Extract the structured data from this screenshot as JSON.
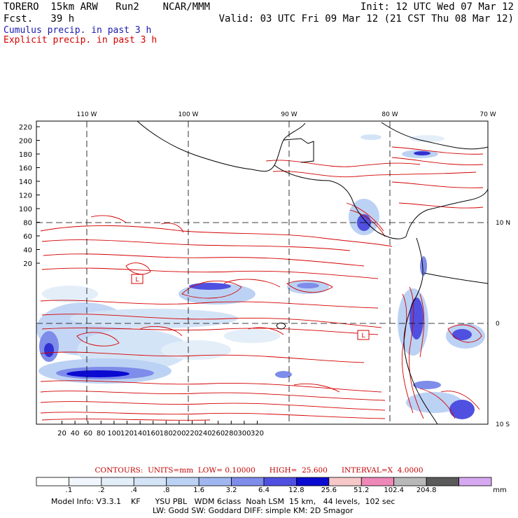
{
  "header": {
    "line1_left": "TORERO  15km ARW   Run2    NCAR/MMM",
    "line1_right": "Init: 12 UTC Wed 07 Mar 12",
    "line2_left": "Fcst.   39 h",
    "line2_right": "Valid: 03 UTC Fri 09 Mar 12 (21 CST Thu 08 Mar 12)",
    "cumulus": "Cumulus precip. in past 3 h",
    "explicit": "Explicit precip. in past 3 h",
    "cumulus_color": "#1a1ab0",
    "explicit_color": "#d40000"
  },
  "map": {
    "top_lon_labels": [
      "110 W",
      "100 W",
      "90 W",
      "80 W",
      "70 W"
    ],
    "right_lat_labels": [
      "10 N",
      "0",
      "10 S"
    ],
    "left_ticks": [
      "220",
      "200",
      "180",
      "160",
      "140",
      "120",
      "100",
      "80",
      "60",
      "40",
      "20"
    ],
    "bottom_ticks": [
      "20",
      "40",
      "60",
      "80",
      "100",
      "120",
      "140",
      "160",
      "180",
      "200",
      "220",
      "240",
      "260",
      "280",
      "300",
      "320"
    ],
    "low_markers": [
      "L",
      "L"
    ],
    "contour_color": "#d40000",
    "coast_color": "#000000"
  },
  "contours_line": "CONTOURS:  UNITS=mm  LOW= 0.10000      HIGH=  25.600      INTERVAL=X  4.0000",
  "colorbar": {
    "labels": [
      ".1",
      ".2",
      ".4",
      ".8",
      "1.6",
      "3.2",
      "6.4",
      "12.8",
      "25.6",
      "51.2",
      "102.4",
      "204.8"
    ],
    "colors": [
      "#ffffff",
      "#f0f6fc",
      "#e4eef9",
      "#d4e4f7",
      "#bcd2f4",
      "#a0b6f0",
      "#7e8cea",
      "#5050e0",
      "#0a0ad0",
      "#f7c8c8",
      "#ee88b8",
      "#b8b8b8",
      "#5a5a5a",
      "#d6a8f0"
    ],
    "unit": "mm"
  },
  "model_info": {
    "line1": "Model Info: V3.3.1    KF      YSU PBL   WDM 6class  Noah LSM  15 km,   44 levels,  102 sec",
    "line2": "LW: Godd SW: Goddard DIFF: simple KM: 2D Smagor"
  }
}
